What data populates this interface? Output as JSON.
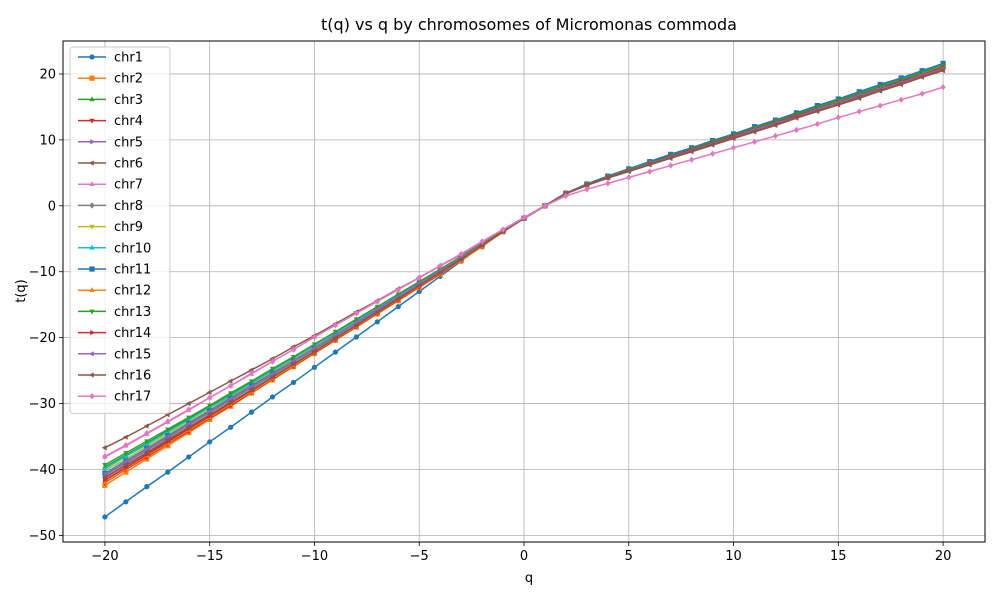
{
  "chart_data": {
    "type": "line",
    "title": "t(q) vs q by chromosomes of Micromonas commoda",
    "xlabel": "q",
    "ylabel": "t(q)",
    "xlim": [
      -22,
      22
    ],
    "ylim": [
      -51,
      25
    ],
    "xticks": [
      -20,
      -15,
      -10,
      -5,
      0,
      5,
      10,
      15,
      20
    ],
    "yticks": [
      -50,
      -40,
      -30,
      -20,
      -10,
      0,
      10,
      20
    ],
    "xtick_labels": [
      "−20",
      "−15",
      "−10",
      "−5",
      "0",
      "5",
      "10",
      "15",
      "20"
    ],
    "ytick_labels": [
      "−50",
      "−40",
      "−30",
      "−20",
      "−10",
      "0",
      "10",
      "20"
    ],
    "grid": true,
    "legend_position": "upper-left",
    "marker_shapes": [
      "circle",
      "square",
      "triangle-up",
      "triangle-down",
      "triangle-right",
      "triangle-left",
      "triangle-up",
      "diamond",
      "triangle-down",
      "triangle-up",
      "square",
      "triangle-up",
      "triangle-down",
      "triangle-right",
      "triangle-left",
      "triangle-left",
      "diamond"
    ],
    "x": [
      -20,
      -19,
      -18,
      -17,
      -16,
      -15,
      -14,
      -13,
      -12,
      -11,
      -10,
      -9,
      -8,
      -7,
      -6,
      -5,
      -4,
      -3,
      -2,
      -1,
      0,
      1,
      2,
      3,
      4,
      5,
      6,
      7,
      8,
      9,
      10,
      11,
      12,
      13,
      14,
      15,
      16,
      17,
      18,
      19,
      20
    ],
    "series": [
      {
        "name": "chr1",
        "color": "#1f77b4",
        "values": [
          -47.2,
          -44.9,
          -42.6,
          -40.4,
          -38.1,
          -35.8,
          -33.6,
          -31.3,
          -29.0,
          -26.8,
          -24.5,
          -22.2,
          -19.9,
          -17.6,
          -15.3,
          -13.0,
          -10.7,
          -8.4,
          -6.0,
          -3.7,
          -1.8,
          0.0,
          1.9,
          3.3,
          4.5,
          5.6,
          6.7,
          7.8,
          8.8,
          9.8,
          10.9,
          11.9,
          12.9,
          14.0,
          15.0,
          16.1,
          17.1,
          18.2,
          19.3,
          20.3,
          21.4
        ]
      },
      {
        "name": "chr2",
        "color": "#ff7f0e",
        "values": [
          -42.4,
          -40.4,
          -38.4,
          -36.4,
          -34.4,
          -32.4,
          -30.4,
          -28.4,
          -26.4,
          -24.4,
          -22.4,
          -20.4,
          -18.4,
          -16.4,
          -14.4,
          -12.4,
          -10.4,
          -8.3,
          -6.2,
          -3.9,
          -1.9,
          0.0,
          1.9,
          3.2,
          4.3,
          5.4,
          6.5,
          7.5,
          8.5,
          9.6,
          10.6,
          11.6,
          12.7,
          13.7,
          14.7,
          15.8,
          16.8,
          17.9,
          18.9,
          20.0,
          21.0
        ]
      },
      {
        "name": "chr3",
        "color": "#2ca02c",
        "values": [
          -39.6,
          -37.8,
          -36.0,
          -34.1,
          -32.3,
          -30.5,
          -28.6,
          -26.8,
          -24.9,
          -23.0,
          -21.1,
          -19.2,
          -17.3,
          -15.4,
          -13.5,
          -11.6,
          -9.7,
          -7.8,
          -5.9,
          -3.9,
          -1.9,
          0.0,
          1.9,
          3.3,
          4.4,
          5.5,
          6.6,
          7.6,
          8.6,
          9.7,
          10.7,
          11.8,
          12.8,
          13.9,
          14.9,
          16.0,
          17.1,
          18.1,
          19.2,
          20.3,
          21.4
        ]
      },
      {
        "name": "chr4",
        "color": "#d62728",
        "values": [
          -42.0,
          -40.0,
          -38.1,
          -36.1,
          -34.2,
          -32.2,
          -30.3,
          -28.3,
          -26.3,
          -24.3,
          -22.3,
          -20.3,
          -18.3,
          -16.3,
          -14.3,
          -12.3,
          -10.3,
          -8.2,
          -6.1,
          -3.9,
          -1.9,
          0.0,
          1.9,
          3.2,
          4.3,
          5.4,
          6.4,
          7.5,
          8.5,
          9.5,
          10.5,
          11.6,
          12.6,
          13.6,
          14.7,
          15.7,
          16.8,
          17.8,
          18.9,
          19.9,
          21.0
        ]
      },
      {
        "name": "chr5",
        "color": "#9467bd",
        "values": [
          -41.3,
          -39.4,
          -37.5,
          -35.6,
          -33.7,
          -31.8,
          -29.9,
          -28.0,
          -26.0,
          -24.1,
          -22.1,
          -20.1,
          -18.1,
          -16.1,
          -14.1,
          -12.1,
          -10.1,
          -8.1,
          -6.0,
          -3.9,
          -1.9,
          0.0,
          1.9,
          3.2,
          4.3,
          5.4,
          6.4,
          7.5,
          8.5,
          9.5,
          10.6,
          11.6,
          12.6,
          13.7,
          14.7,
          15.8,
          16.8,
          17.9,
          18.9,
          20.0,
          21.0
        ]
      },
      {
        "name": "chr6",
        "color": "#8c564b",
        "values": [
          -36.7,
          -35.1,
          -33.4,
          -31.7,
          -30.0,
          -28.3,
          -26.6,
          -24.9,
          -23.2,
          -21.4,
          -19.7,
          -17.9,
          -16.1,
          -14.4,
          -12.6,
          -10.9,
          -9.1,
          -7.4,
          -5.6,
          -3.7,
          -1.8,
          0.0,
          1.8,
          3.1,
          4.2,
          5.2,
          6.2,
          7.2,
          8.2,
          9.2,
          10.2,
          11.2,
          12.2,
          13.3,
          14.3,
          15.3,
          16.3,
          17.4,
          18.4,
          19.5,
          20.5
        ]
      },
      {
        "name": "chr7",
        "color": "#e377c2",
        "values": [
          -38.1,
          -36.4,
          -34.6,
          -32.8,
          -31.0,
          -29.1,
          -27.3,
          -25.5,
          -23.6,
          -21.8,
          -19.9,
          -18.1,
          -16.3,
          -14.5,
          -12.7,
          -10.9,
          -9.1,
          -7.3,
          -5.5,
          -3.6,
          -1.8,
          0.0,
          1.8,
          3.2,
          4.3,
          5.4,
          6.5,
          7.5,
          8.6,
          9.6,
          10.7,
          11.7,
          12.8,
          13.8,
          14.9,
          16.0,
          17.0,
          18.1,
          19.1,
          20.2,
          21.3
        ]
      },
      {
        "name": "chr8",
        "color": "#7f7f7f",
        "values": [
          -40.9,
          -39.0,
          -37.1,
          -35.2,
          -33.3,
          -31.4,
          -29.5,
          -27.6,
          -25.7,
          -23.7,
          -21.8,
          -19.8,
          -17.8,
          -15.9,
          -13.9,
          -11.9,
          -10.0,
          -8.0,
          -6.0,
          -3.9,
          -1.9,
          0.0,
          1.9,
          3.2,
          4.3,
          5.4,
          6.4,
          7.5,
          8.5,
          9.5,
          10.6,
          11.6,
          12.6,
          13.7,
          14.7,
          15.8,
          16.8,
          17.9,
          18.9,
          20.0,
          21.0
        ]
      },
      {
        "name": "chr9",
        "color": "#bcbd22",
        "values": [
          -40.2,
          -38.4,
          -36.5,
          -34.6,
          -32.8,
          -30.9,
          -29.0,
          -27.1,
          -25.2,
          -23.3,
          -21.4,
          -19.5,
          -17.6,
          -15.6,
          -13.7,
          -11.8,
          -9.9,
          -7.9,
          -5.9,
          -3.9,
          -1.9,
          0.0,
          1.9,
          3.2,
          4.3,
          5.4,
          6.5,
          7.5,
          8.5,
          9.6,
          10.6,
          11.7,
          12.7,
          13.8,
          14.8,
          15.9,
          16.9,
          18.0,
          19.0,
          20.1,
          21.2
        ]
      },
      {
        "name": "chr10",
        "color": "#17becf",
        "values": [
          -39.9,
          -38.0,
          -36.2,
          -34.3,
          -32.5,
          -30.6,
          -28.8,
          -26.9,
          -25.0,
          -23.1,
          -21.2,
          -19.3,
          -17.4,
          -15.5,
          -13.6,
          -11.7,
          -9.8,
          -7.9,
          -5.9,
          -3.9,
          -1.9,
          0.0,
          1.9,
          3.3,
          4.4,
          5.5,
          6.5,
          7.6,
          8.6,
          9.7,
          10.7,
          11.8,
          12.8,
          13.9,
          15.0,
          16.0,
          17.1,
          18.2,
          19.2,
          20.3,
          21.4
        ]
      },
      {
        "name": "chr11",
        "color": "#1f77b4",
        "values": [
          -40.6,
          -38.7,
          -36.8,
          -34.9,
          -33.0,
          -31.1,
          -29.2,
          -27.3,
          -25.4,
          -23.5,
          -21.6,
          -19.6,
          -17.7,
          -15.7,
          -13.8,
          -11.8,
          -9.9,
          -7.9,
          -5.9,
          -3.9,
          -1.9,
          0.0,
          1.9,
          3.3,
          4.5,
          5.6,
          6.7,
          7.8,
          8.8,
          9.9,
          10.9,
          12.0,
          13.0,
          14.1,
          15.2,
          16.2,
          17.3,
          18.4,
          19.4,
          20.5,
          21.6
        ]
      },
      {
        "name": "chr12",
        "color": "#ff7f0e",
        "values": [
          -41.9,
          -39.9,
          -37.9,
          -36.0,
          -34.0,
          -32.1,
          -30.1,
          -28.2,
          -26.2,
          -24.2,
          -22.2,
          -20.2,
          -18.2,
          -16.2,
          -14.2,
          -12.2,
          -10.2,
          -8.2,
          -6.1,
          -4.0,
          -1.9,
          0.0,
          1.9,
          3.2,
          4.3,
          5.4,
          6.5,
          7.5,
          8.5,
          9.6,
          10.6,
          11.6,
          12.7,
          13.7,
          14.8,
          15.8,
          16.9,
          17.9,
          19.0,
          20.0,
          21.1
        ]
      },
      {
        "name": "chr13",
        "color": "#2ca02c",
        "values": [
          -39.3,
          -37.5,
          -35.7,
          -33.9,
          -32.1,
          -30.3,
          -28.4,
          -26.6,
          -24.7,
          -22.9,
          -21.0,
          -19.1,
          -17.2,
          -15.3,
          -13.4,
          -11.5,
          -9.6,
          -7.7,
          -5.8,
          -3.8,
          -1.9,
          0.0,
          1.9,
          3.2,
          4.4,
          5.5,
          6.5,
          7.6,
          8.6,
          9.7,
          10.7,
          11.8,
          12.8,
          13.9,
          14.9,
          16.0,
          17.0,
          18.1,
          19.1,
          20.2,
          21.3
        ]
      },
      {
        "name": "chr14",
        "color": "#d62728",
        "values": [
          -41.6,
          -39.7,
          -37.7,
          -35.8,
          -33.8,
          -31.9,
          -29.9,
          -28.0,
          -26.0,
          -24.0,
          -22.1,
          -20.1,
          -18.1,
          -16.1,
          -14.1,
          -12.1,
          -10.1,
          -8.1,
          -6.0,
          -3.9,
          -1.9,
          0.0,
          1.9,
          3.2,
          4.3,
          5.4,
          6.4,
          7.5,
          8.5,
          9.5,
          10.6,
          11.6,
          12.6,
          13.7,
          14.7,
          15.7,
          16.8,
          17.8,
          18.9,
          19.9,
          21.0
        ]
      },
      {
        "name": "chr15",
        "color": "#9467bd",
        "values": [
          -40.7,
          -38.8,
          -36.9,
          -35.0,
          -33.1,
          -31.2,
          -29.3,
          -27.4,
          -25.5,
          -23.5,
          -21.6,
          -19.6,
          -17.7,
          -15.7,
          -13.8,
          -11.8,
          -9.9,
          -7.9,
          -5.9,
          -3.9,
          -1.9,
          0.0,
          1.9,
          3.2,
          4.3,
          5.4,
          6.4,
          7.4,
          8.4,
          9.4,
          10.4,
          11.5,
          12.5,
          13.5,
          14.6,
          15.6,
          16.7,
          17.7,
          18.7,
          19.8,
          20.8
        ]
      },
      {
        "name": "chr16",
        "color": "#8c564b",
        "values": [
          -41.2,
          -39.3,
          -37.4,
          -35.5,
          -33.6,
          -31.7,
          -29.8,
          -27.9,
          -26.0,
          -24.0,
          -22.1,
          -20.1,
          -18.1,
          -16.1,
          -14.1,
          -12.1,
          -10.1,
          -8.1,
          -6.0,
          -3.9,
          -1.9,
          0.0,
          1.9,
          3.2,
          4.3,
          5.3,
          6.3,
          7.3,
          8.3,
          9.3,
          10.3,
          11.3,
          12.3,
          13.4,
          14.4,
          15.4,
          16.5,
          17.5,
          18.5,
          19.6,
          20.6
        ]
      },
      {
        "name": "chr17",
        "color": "#e377c2",
        "values": [
          -38.0,
          -36.3,
          -34.5,
          -32.7,
          -30.9,
          -29.1,
          -27.3,
          -25.4,
          -23.6,
          -21.8,
          -19.9,
          -18.1,
          -16.3,
          -14.5,
          -12.7,
          -10.9,
          -9.1,
          -7.3,
          -5.4,
          -3.6,
          -1.8,
          0.0,
          1.5,
          2.5,
          3.4,
          4.3,
          5.2,
          6.1,
          7.0,
          7.9,
          8.8,
          9.7,
          10.6,
          11.5,
          12.4,
          13.4,
          14.3,
          15.2,
          16.1,
          17.0,
          18.0
        ]
      }
    ]
  }
}
